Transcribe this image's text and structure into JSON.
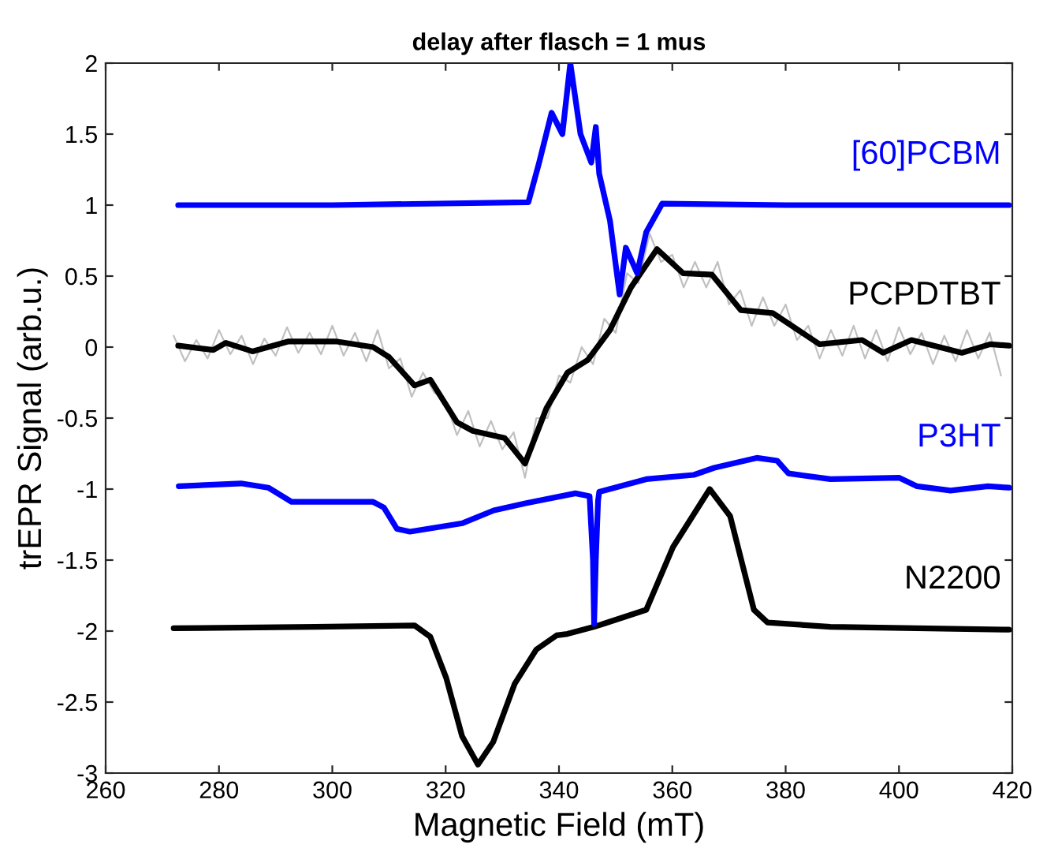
{
  "chart_data": {
    "type": "line",
    "title": "delay after flasch = 1 mus",
    "xlabel": "Magnetic Field (mT)",
    "ylabel": "trEPR Signal (arb.u.)",
    "xlim": [
      260,
      420
    ],
    "xticks": [
      260,
      280,
      300,
      320,
      340,
      360,
      380,
      400,
      420
    ],
    "ylim": [
      -3,
      2
    ],
    "yticks": [
      -3,
      -2.5,
      -2,
      -1.5,
      -1,
      -0.5,
      0,
      0.5,
      1,
      1.5,
      2
    ],
    "series": [
      {
        "color": "#c0c0c0",
        "x": [
          272,
          274,
          276,
          278,
          280,
          282,
          284,
          286,
          288,
          290,
          292,
          294,
          296,
          298,
          300,
          302,
          304,
          306,
          308,
          310,
          312,
          314,
          316,
          318,
          320,
          322,
          324,
          326,
          328,
          330,
          332,
          334,
          336,
          338,
          340,
          342,
          344,
          346,
          348,
          350,
          352,
          354,
          356,
          358,
          360,
          362,
          364,
          366,
          368,
          370,
          372,
          374,
          376,
          378,
          380,
          382,
          384,
          386,
          388,
          390,
          392,
          394,
          396,
          398,
          400,
          402,
          404,
          406,
          408,
          410,
          412,
          414,
          416,
          418
        ],
        "values": [
          0.08,
          -0.1,
          0.05,
          -0.08,
          0.12,
          -0.05,
          0.08,
          -0.12,
          0.06,
          -0.06,
          0.14,
          -0.04,
          0.1,
          -0.05,
          0.15,
          -0.06,
          0.1,
          -0.1,
          0.12,
          -0.15,
          -0.08,
          -0.35,
          -0.18,
          -0.32,
          -0.38,
          -0.62,
          -0.45,
          -0.7,
          -0.52,
          -0.72,
          -0.6,
          -0.92,
          -0.5,
          -0.5,
          -0.2,
          -0.25,
          0.0,
          -0.12,
          0.2,
          0.1,
          0.52,
          0.45,
          0.8,
          0.6,
          0.65,
          0.42,
          0.6,
          0.42,
          0.6,
          0.3,
          0.4,
          0.15,
          0.35,
          0.15,
          0.3,
          0.05,
          0.15,
          -0.08,
          0.12,
          -0.06,
          0.15,
          -0.08,
          0.12,
          -0.1,
          0.14,
          -0.05,
          0.1,
          -0.12,
          0.08,
          -0.1,
          0.12,
          -0.08,
          0.1,
          -0.2
        ]
      },
      {
        "name": "PCPDTBT",
        "color": "#000000",
        "x": [
          272.8,
          279.0,
          281.2,
          285.9,
          292.3,
          300.6,
          307.2,
          310,
          314.5,
          317.3,
          322,
          324.8,
          330.4,
          334,
          337.8,
          341.5,
          345.1,
          349,
          352.7,
          357.3,
          361.9,
          367,
          372.1,
          377.7,
          386,
          393.5,
          397.2,
          402.2,
          411.1,
          416.1,
          419.4
        ],
        "values": [
          0.01,
          -0.02,
          0.03,
          -0.03,
          0.04,
          0.04,
          0.0,
          -0.07,
          -0.27,
          -0.23,
          -0.53,
          -0.59,
          -0.64,
          -0.82,
          -0.43,
          -0.18,
          -0.09,
          0.12,
          0.42,
          0.69,
          0.52,
          0.51,
          0.26,
          0.24,
          0.02,
          0.05,
          -0.04,
          0.05,
          -0.04,
          0.02,
          0.01
        ]
      },
      {
        "name": "N2200",
        "color": "#000000",
        "x": [
          272,
          297,
          314.5,
          317.3,
          320.1,
          322.9,
          325.7,
          328.4,
          332.2,
          336,
          339.6,
          341.5,
          346.2,
          355.4,
          360.1,
          366.6,
          370.2,
          374.4,
          376.8,
          387.9,
          419.4
        ],
        "values": [
          -1.98,
          -1.97,
          -1.96,
          -2.04,
          -2.33,
          -2.74,
          -2.94,
          -2.78,
          -2.37,
          -2.13,
          -2.03,
          -2.02,
          -1.97,
          -1.85,
          -1.41,
          -1.0,
          -1.19,
          -1.85,
          -1.94,
          -1.97,
          -1.99
        ]
      },
      {
        "name": "P3HT",
        "color": "#0000ff",
        "x": [
          272.9,
          283.9,
          288.7,
          292.8,
          307.2,
          309.1,
          311.4,
          313.7,
          323,
          328.5,
          334.1,
          342.9,
          345.4,
          346.0,
          346.2,
          346.5,
          346.9,
          347.1,
          355.4,
          363.8,
          367.4,
          374.9,
          378.5,
          380.5,
          387.9,
          400,
          403.2,
          409.1,
          415.7,
          419.4
        ],
        "values": [
          -0.98,
          -0.96,
          -0.99,
          -1.09,
          -1.09,
          -1.13,
          -1.28,
          -1.3,
          -1.24,
          -1.15,
          -1.1,
          -1.03,
          -1.05,
          -1.5,
          -1.95,
          -1.5,
          -1.08,
          -1.02,
          -0.93,
          -0.9,
          -0.85,
          -0.78,
          -0.8,
          -0.89,
          -0.93,
          -0.92,
          -0.98,
          -1.01,
          -0.98,
          -0.99
        ]
      },
      {
        "name": "[60]PCBM",
        "color": "#0000ff",
        "x": [
          272.8,
          300,
          334.6,
          336.5,
          338.7,
          340.6,
          342,
          343.8,
          345.7,
          346.5,
          347.1,
          349,
          350.7,
          351.8,
          353.8,
          355.4,
          358.2,
          380,
          419.4
        ],
        "values": [
          1.0,
          1.0,
          1.02,
          1.3,
          1.65,
          1.5,
          2.0,
          1.5,
          1.3,
          1.55,
          1.22,
          0.89,
          0.37,
          0.7,
          0.52,
          0.81,
          1.01,
          1.0,
          1.0
        ]
      }
    ]
  }
}
